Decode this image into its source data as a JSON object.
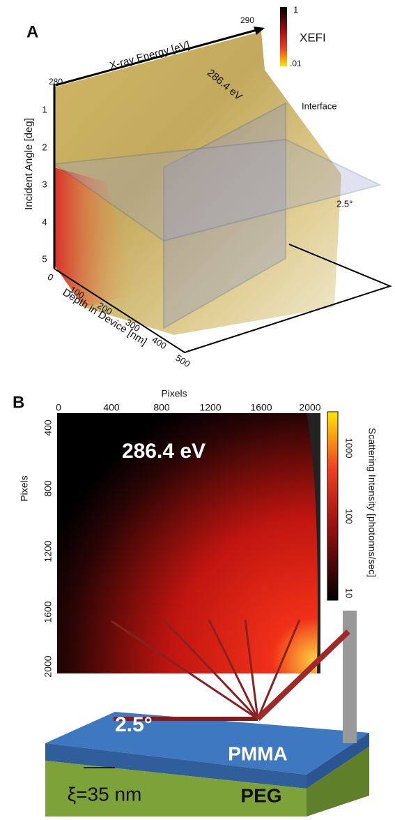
{
  "panel_a": {
    "label": "A",
    "energy_axis": {
      "title": "X-ray Energy [eV]",
      "start": "280",
      "end": "290"
    },
    "angle_axis": {
      "title": "Incident Angle [deg]",
      "ticks": [
        "1",
        "2",
        "3",
        "4",
        "5"
      ]
    },
    "depth_axis": {
      "title": "Depth in Device [nm]",
      "ticks": [
        "0",
        "100",
        "200",
        "300",
        "400",
        "500"
      ]
    },
    "colorbar": {
      "title": "XEFI",
      "max": "1",
      "min": ".01"
    },
    "annotations": {
      "peak": "286.4 eV",
      "interface": "Interface",
      "angle": "2.5°"
    }
  },
  "panel_b": {
    "label": "B",
    "x_axis": {
      "title": "Pixels",
      "ticks": [
        "0",
        "400",
        "800",
        "1200",
        "1600",
        "2000"
      ]
    },
    "y_axis": {
      "title": "Pixels",
      "ticks": [
        "400",
        "800",
        "1200",
        "1600",
        "2000"
      ]
    },
    "energy": "286.4 eV",
    "colorbar": {
      "title": "Scattering Intensity [photonns/sec]",
      "ticks": [
        "1000",
        "100",
        "10"
      ]
    },
    "sample": {
      "angle": "2.5°",
      "top_layer": "PMMA",
      "bottom_layer": "PEG",
      "length": "ξ=35 nm"
    }
  }
}
